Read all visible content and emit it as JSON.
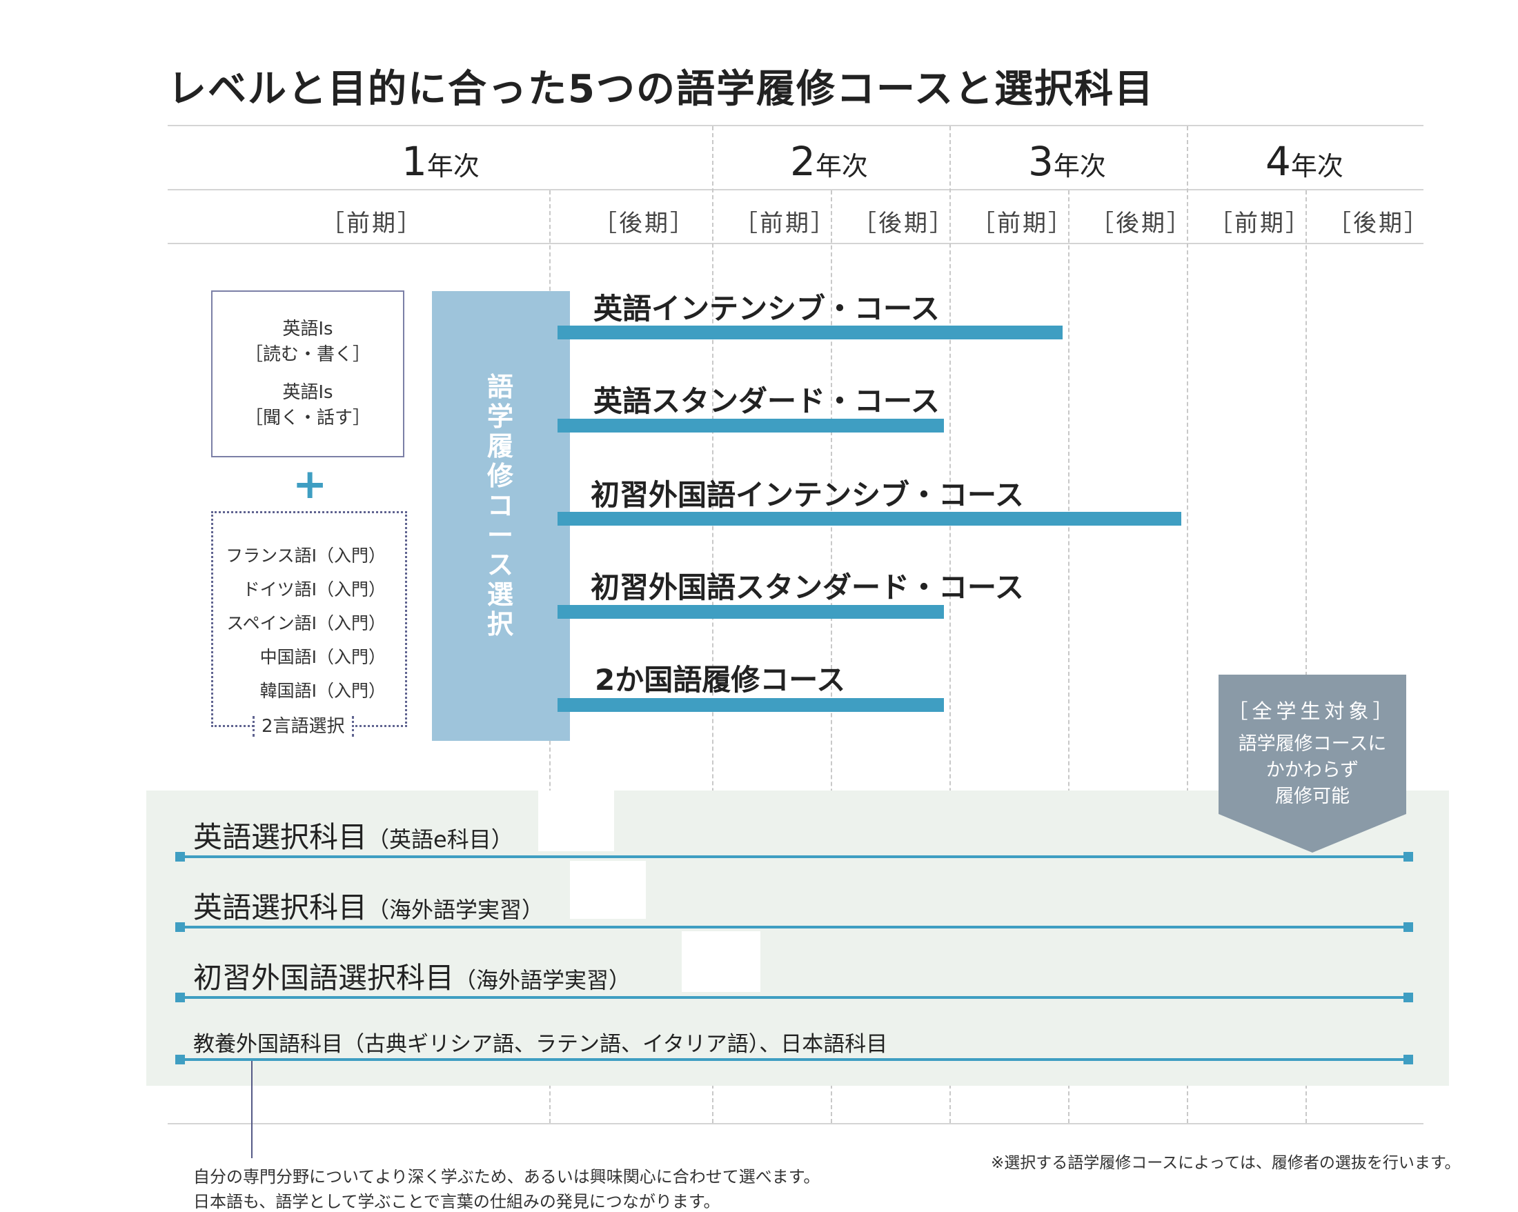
{
  "title": "レベルと目的に合った5つの語学履修コースと選択科目",
  "years": [
    {
      "num": "1",
      "suffix": "年次"
    },
    {
      "num": "2",
      "suffix": "年次"
    },
    {
      "num": "3",
      "suffix": "年次"
    },
    {
      "num": "4",
      "suffix": "年次"
    }
  ],
  "semesters": [
    "［前期］",
    "［後期］",
    "［前期］",
    "［後期］",
    "［前期］",
    "［後期］",
    "［前期］",
    "［後期］"
  ],
  "required_box": {
    "lines": [
      "英語Ⅰs",
      "［読む・書く］",
      "英語Ⅰs",
      "［聞く・話す］"
    ]
  },
  "plus": "+",
  "intro_languages": [
    "フランス語Ⅰ（入門）",
    "ドイツ語Ⅰ（入門）",
    "スペイン語Ⅰ（入門）",
    "中国語Ⅰ（入門）",
    "韓国語Ⅰ（入門）"
  ],
  "two_lang_label": "2言語選択",
  "course_select_label": "語学履修コース選択",
  "courses": [
    {
      "name": "英語インテンシブ・コース"
    },
    {
      "name": "英語スタンダード・コース"
    },
    {
      "name": "初習外国語インテンシブ・コース"
    },
    {
      "name": "初習外国語スタンダード・コース"
    },
    {
      "name": "2か国語履修コース"
    }
  ],
  "all_students": {
    "title": "［全学生対象］",
    "lines": [
      "語学履修コースに",
      "かかわらず",
      "履修可能"
    ]
  },
  "electives": [
    {
      "main": "英語選択科目",
      "sub": "（英語e科目）"
    },
    {
      "main": "英語選択科目",
      "sub": "（海外語学実習）"
    },
    {
      "main": "初習外国語選択科目",
      "sub": "（海外語学実習）"
    },
    {
      "main": "教養外国語科目（古典ギリシア語、ラテン語、イタリア語）、日本語科目",
      "sub": ""
    }
  ],
  "footnote_left": [
    "自分の専門分野についてより深く学ぶため、あるいは興味関心に合わせて選べます。",
    "日本語も、語学として学ぶことで言葉の仕組みの発見につながります。"
  ],
  "footnote_right": "※選択する語学履修コースによっては、履修者の選抜を行います。",
  "colors": {
    "accent": "#3f9ec2",
    "vertical_bar": "#9ec4db",
    "elective_bg": "#edf2ed",
    "notice": "#8a9aa7"
  }
}
